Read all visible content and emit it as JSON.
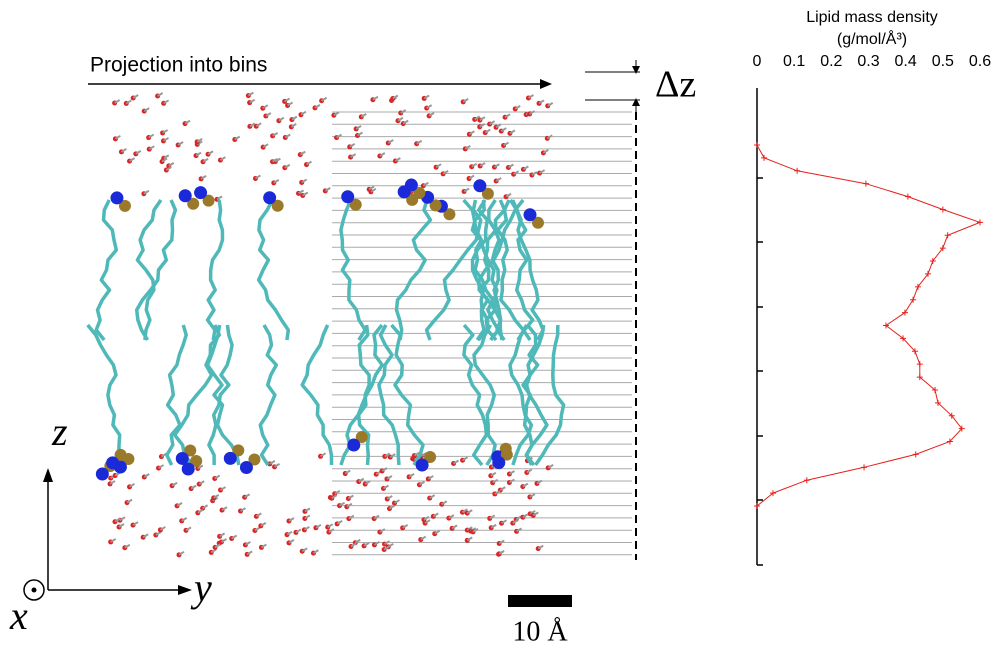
{
  "chart_data": {
    "type": "line",
    "title": "Lipid mass density",
    "x_label": "(g/mol/Å³)",
    "categories": [
      null,
      null,
      null,
      null,
      null,
      null,
      null,
      null,
      null,
      null,
      null,
      null,
      null,
      null,
      null,
      null,
      null,
      null,
      null,
      null,
      null,
      null,
      null,
      null,
      null,
      null,
      null,
      null,
      null
    ],
    "values": [
      0,
      0.019,
      0.108,
      0.293,
      0.406,
      0.5,
      0.6,
      0.513,
      0.5,
      0.473,
      0.46,
      0.433,
      0.42,
      0.398,
      0.347,
      0.393,
      0.425,
      0.438,
      0.438,
      0.479,
      0.487,
      0.524,
      0.551,
      0.519,
      0.427,
      0.288,
      0.134,
      0.043,
      0
    ],
    "color": "#e8201c",
    "xlim": [
      0,
      0.6
    ],
    "xticks": [
      0,
      0.1,
      0.2,
      0.3,
      0.4,
      0.5,
      0.6
    ]
  },
  "annotations": {
    "projection": "Projection into bins",
    "bin_width": "Δz",
    "axis_z": "z",
    "axis_y": "y",
    "axis_x": "x",
    "scale_bar": "10 Å"
  }
}
